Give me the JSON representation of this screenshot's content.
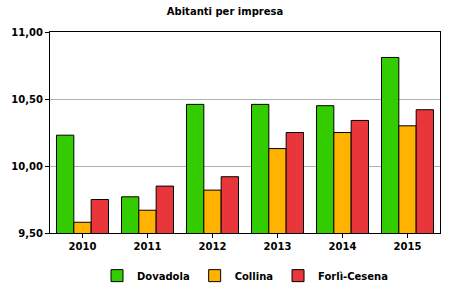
{
  "chart_data": {
    "type": "bar",
    "title": "Abitanti per impresa",
    "categories": [
      "2010",
      "2011",
      "2012",
      "2013",
      "2014",
      "2015"
    ],
    "series": [
      {
        "name": "Dovadola",
        "color": "#33cc00",
        "values": [
          10.23,
          9.77,
          10.46,
          10.46,
          10.45,
          10.81
        ]
      },
      {
        "name": "Collina",
        "color": "#ffb300",
        "values": [
          9.58,
          9.67,
          9.82,
          10.13,
          10.25,
          10.3
        ]
      },
      {
        "name": "Forlì-Cesena",
        "color": "#e8363a",
        "values": [
          9.75,
          9.85,
          9.92,
          10.25,
          10.34,
          10.42
        ]
      }
    ],
    "ylim": [
      9.5,
      11.0
    ],
    "yticks": [
      {
        "value": 9.5,
        "label": "9,50"
      },
      {
        "value": 10.0,
        "label": "10,00"
      },
      {
        "value": 10.5,
        "label": "10,50"
      },
      {
        "value": 11.0,
        "label": "11,00"
      }
    ],
    "grid": true,
    "legend": "bottom"
  }
}
